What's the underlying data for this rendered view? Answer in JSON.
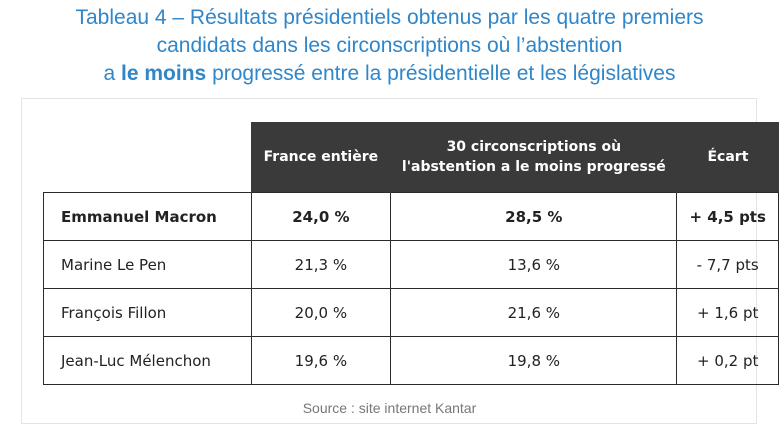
{
  "title": {
    "line1": "Tableau 4 – Résultats présidentiels obtenus par les quatre premiers",
    "line2": "candidats dans les circonscriptions où l’abstention",
    "line3_pre": "a ",
    "line3_bold": "le moins",
    "line3_post": " progressé entre la présidentielle et les législatives"
  },
  "table": {
    "headers": [
      "",
      "France entière",
      "30 circonscriptions où l'abstention a le moins progressé",
      "Écart"
    ],
    "rows": [
      {
        "name": "Emmanuel Macron",
        "france": "24,0 %",
        "circ": "28,5 %",
        "ecart": "+ 4,5 pts",
        "bold": true
      },
      {
        "name": "Marine Le Pen",
        "france": "21,3 %",
        "circ": "13,6 %",
        "ecart": "- 7,7 pts",
        "bold": false
      },
      {
        "name": "François Fillon",
        "france": "20,0 %",
        "circ": "21,6 %",
        "ecart": "+ 1,6 pt",
        "bold": false
      },
      {
        "name": "Jean-Luc Mélenchon",
        "france": "19,6 %",
        "circ": "19,8 %",
        "ecart": "+ 0,2 pt",
        "bold": false
      }
    ]
  },
  "source": "Source : site internet Kantar"
}
